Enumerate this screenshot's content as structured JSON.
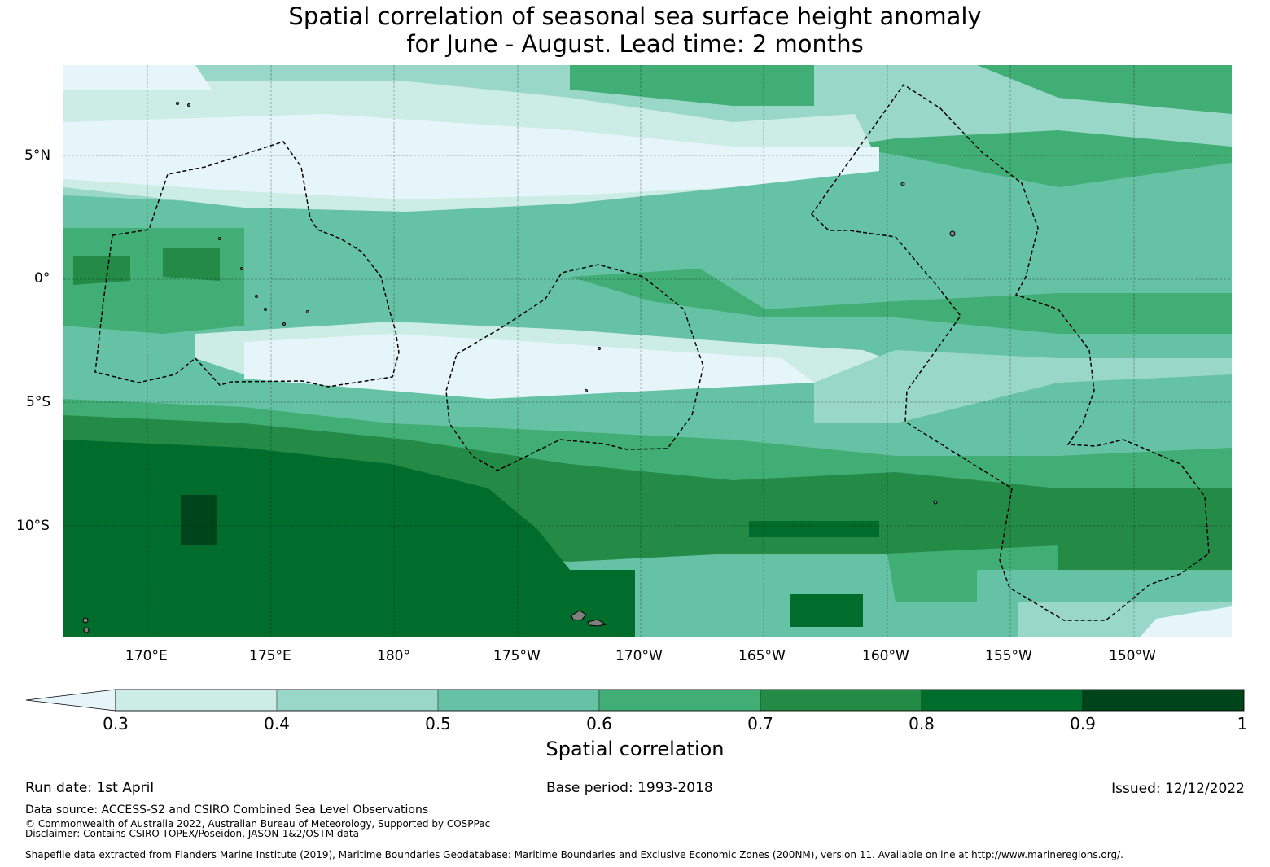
{
  "title_line1": "Spatial correlation of seasonal sea surface height anomaly",
  "title_line2": "for June - August. Lead time: 2 months",
  "lat_labels": [
    "5°N",
    "0°",
    "5°S",
    "10°S"
  ],
  "lon_labels": [
    "170°E",
    "175°E",
    "180°",
    "175°W",
    "170°W",
    "165°W",
    "160°W",
    "155°W",
    "150°W"
  ],
  "colorbar": {
    "title": "Spatial correlation",
    "ticks": [
      "0.3",
      "0.4",
      "0.5",
      "0.6",
      "0.7",
      "0.8",
      "0.9",
      "1"
    ],
    "colors": [
      "#e5f5f9",
      "#ccece6",
      "#99d8c9",
      "#66c2a4",
      "#41ae76",
      "#238b45",
      "#006d2c",
      "#00441b"
    ],
    "extend": "min"
  },
  "footer": {
    "run_date": "Run date: 1st April",
    "base_period": "Base period: 1993-2018",
    "issued": "Issued: 12/12/2022",
    "data_source": "Data source: ACCESS-S2 and CSIRO Combined Sea Level Observations",
    "copyright": "© Commonwealth of Australia 2022, Australian Bureau of Meteorology, Supported by COSPPac",
    "disclaimer": "Disclaimer: Contains CSIRO TOPEX/Poseidon, JASON-1&2/OSTM data",
    "shapefile": "Shapefile data extracted from Flanders Marine Institute (2019), Maritime Boundaries Geodatabase: Maritime Boundaries and Exclusive Economic Zones (200NM), version 11. Available online at http://www.marineregions.org/."
  }
}
